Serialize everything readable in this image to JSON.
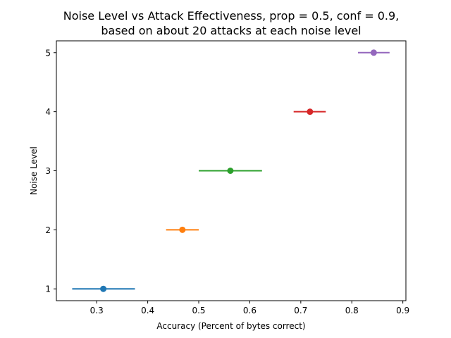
{
  "chart_data": {
    "type": "scatter",
    "title_lines": [
      "Noise Level vs Attack Effectiveness, prop = 0.5, conf = 0.9,",
      "based on about 20 attacks at each noise level"
    ],
    "xlabel": "Accuracy (Percent of bytes correct)",
    "ylabel": "Noise Level",
    "xlim": [
      0.221,
      0.906
    ],
    "ylim": [
      0.8,
      5.2
    ],
    "xticks": [
      0.3,
      0.4,
      0.5,
      0.6,
      0.7,
      0.8,
      0.9
    ],
    "xtick_labels": [
      "0.3",
      "0.4",
      "0.5",
      "0.6",
      "0.7",
      "0.8",
      "0.9"
    ],
    "yticks": [
      1,
      2,
      3,
      4,
      5
    ],
    "ytick_labels": [
      "1",
      "2",
      "3",
      "4",
      "5"
    ],
    "grid": false,
    "points": [
      {
        "noise": 1,
        "accuracy": 0.313,
        "ci_low": 0.252,
        "ci_high": 0.375,
        "color": "#1f77b4"
      },
      {
        "noise": 2,
        "accuracy": 0.468,
        "ci_low": 0.436,
        "ci_high": 0.5,
        "color": "#ff7f0e"
      },
      {
        "noise": 3,
        "accuracy": 0.562,
        "ci_low": 0.5,
        "ci_high": 0.624,
        "color": "#2ca02c"
      },
      {
        "noise": 4,
        "accuracy": 0.718,
        "ci_low": 0.686,
        "ci_high": 0.749,
        "color": "#d62728"
      },
      {
        "noise": 5,
        "accuracy": 0.843,
        "ci_low": 0.812,
        "ci_high": 0.874,
        "color": "#9467bd"
      }
    ]
  }
}
